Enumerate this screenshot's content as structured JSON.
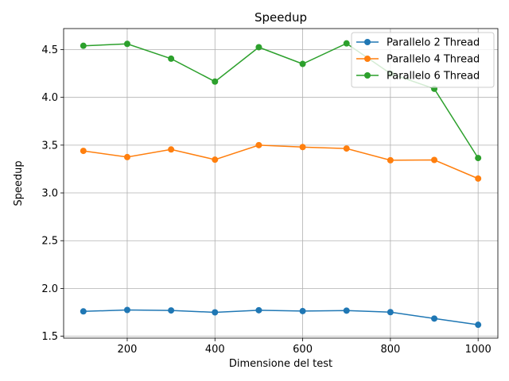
{
  "chart_data": {
    "type": "line",
    "title": "Speedup",
    "xlabel": "Dimensione del test",
    "ylabel": "Speedup",
    "x": [
      100,
      200,
      300,
      400,
      500,
      600,
      700,
      800,
      900,
      1000
    ],
    "xlim": [
      55,
      1045
    ],
    "ylim": [
      1.48,
      4.72
    ],
    "xticks": [
      200,
      400,
      600,
      800,
      1000
    ],
    "yticks": [
      1.5,
      2.0,
      2.5,
      3.0,
      3.5,
      4.0,
      4.5
    ],
    "xtick_labels": [
      "200",
      "400",
      "600",
      "800",
      "1000"
    ],
    "ytick_labels": [
      "1.5",
      "2.0",
      "2.5",
      "3.0",
      "3.5",
      "4.0",
      "4.5"
    ],
    "grid": true,
    "legend_position": "top-right",
    "series": [
      {
        "name": "Parallelo 2 Thread",
        "color": "#1f77b4",
        "values": [
          1.76,
          1.775,
          1.77,
          1.75,
          1.772,
          1.763,
          1.768,
          1.752,
          1.685,
          1.62
        ]
      },
      {
        "name": "Parallelo 4 Thread",
        "color": "#ff7f0e",
        "values": [
          3.44,
          3.375,
          3.455,
          3.348,
          3.5,
          3.48,
          3.465,
          3.342,
          3.345,
          3.15
        ]
      },
      {
        "name": "Parallelo 6 Thread",
        "color": "#2ca02c",
        "values": [
          4.54,
          4.56,
          4.405,
          4.165,
          4.525,
          4.35,
          4.565,
          4.25,
          4.09,
          3.365
        ]
      }
    ]
  }
}
